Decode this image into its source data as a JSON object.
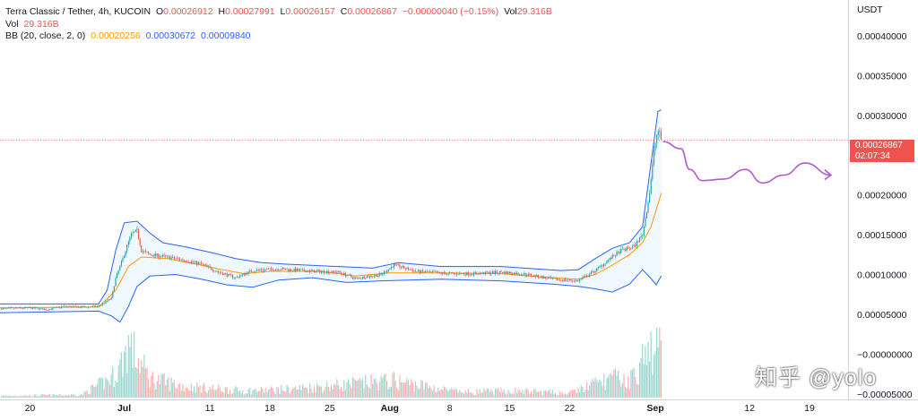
{
  "legend": {
    "symbol": "Terra Classic / Tether, 4h, KUCOIN",
    "o_label": "O",
    "o_value": "0.00026912",
    "h_label": "H",
    "h_value": "0.00027991",
    "l_label": "L",
    "l_value": "0.00026157",
    "c_label": "C",
    "c_value": "0.00026867",
    "change": "−0.00000040 (−0.15%)",
    "vol_inline": "29.316B",
    "vol_label": "Vol",
    "vol_value": "29.316B",
    "bb_label": "BB (20, close, 2, 0)",
    "bb_basis": "0.00020256",
    "bb_upper": "0.00030672",
    "bb_lower": "0.00009840"
  },
  "price_tag": {
    "price": "0.00026867",
    "countdown": "02:07:34"
  },
  "watermark": "知乎 @yolo",
  "colors": {
    "up": "#26a69a",
    "down": "#ef5350",
    "basis": "#ff9800",
    "bands": "#2962ff",
    "projection": "#b05ad0"
  },
  "chart_data": {
    "type": "candlestick",
    "title": "Terra Classic / Tether, 4h, KUCOIN",
    "y_axis_unit": "USDT",
    "y_ticks": [
      "0.00040000",
      "0.00035000",
      "0.00030000",
      "0.00025000",
      "0.00020000",
      "0.00015000",
      "0.00010000",
      "0.00005000",
      "−0.00000000",
      "−0.00005000"
    ],
    "y_tick_values": [
      0.0004,
      0.00035,
      0.0003,
      0.00025,
      0.0002,
      0.00015,
      0.0001,
      5e-05,
      0,
      -5e-05
    ],
    "y_axis_label": "USDT",
    "ylim": [
      -5.7e-05,
      0.000445
    ],
    "x_ticks": [
      "20",
      "Jul",
      "11",
      "18",
      "25",
      "Aug",
      "8",
      "15",
      "22",
      "Sep",
      "12",
      "19"
    ],
    "x_tick_days": [
      0,
      11,
      21,
      28,
      35,
      42,
      49,
      56,
      63,
      73,
      84,
      91
    ],
    "x_range_days": [
      -3.5,
      95.5
    ],
    "last_price": 0.00026867,
    "price_series": [
      {
        "day": -3.5,
        "close": 5.7e-05
      },
      {
        "day": 0,
        "close": 5.8e-05
      },
      {
        "day": 2,
        "close": 5.6e-05
      },
      {
        "day": 4,
        "close": 6e-05
      },
      {
        "day": 6,
        "close": 5.9e-05
      },
      {
        "day": 8,
        "close": 6e-05
      },
      {
        "day": 9.5,
        "close": 7e-05
      },
      {
        "day": 10,
        "close": 9.5e-05
      },
      {
        "day": 11,
        "close": 0.000125
      },
      {
        "day": 11.8,
        "close": 0.00015
      },
      {
        "day": 12.5,
        "close": 0.000155
      },
      {
        "day": 13,
        "close": 0.00013
      },
      {
        "day": 14,
        "close": 0.000125
      },
      {
        "day": 16,
        "close": 0.000122
      },
      {
        "day": 18,
        "close": 0.000118
      },
      {
        "day": 20,
        "close": 0.000113
      },
      {
        "day": 22,
        "close": 0.000103
      },
      {
        "day": 24,
        "close": 9.6e-05
      },
      {
        "day": 26,
        "close": 0.000105
      },
      {
        "day": 29,
        "close": 0.000107
      },
      {
        "day": 33,
        "close": 0.000104
      },
      {
        "day": 36,
        "close": 0.000103
      },
      {
        "day": 38,
        "close": 9.5e-05
      },
      {
        "day": 41,
        "close": 0.0001
      },
      {
        "day": 42.5,
        "close": 0.000112
      },
      {
        "day": 45,
        "close": 0.000104
      },
      {
        "day": 49,
        "close": 0.000101
      },
      {
        "day": 52,
        "close": 0.000101
      },
      {
        "day": 55,
        "close": 0.000103
      },
      {
        "day": 58,
        "close": 0.0001
      },
      {
        "day": 61,
        "close": 9.4e-05
      },
      {
        "day": 64,
        "close": 9.2e-05
      },
      {
        "day": 66,
        "close": 0.000105
      },
      {
        "day": 67.5,
        "close": 0.000118
      },
      {
        "day": 69,
        "close": 0.00013
      },
      {
        "day": 70.5,
        "close": 0.000135
      },
      {
        "day": 71.5,
        "close": 0.00015
      },
      {
        "day": 72.3,
        "close": 0.0002
      },
      {
        "day": 72.9,
        "close": 0.00026
      },
      {
        "day": 73.3,
        "close": 0.000282
      },
      {
        "day": 73.7,
        "close": 0.000269
      }
    ],
    "bb_upper_series": [
      {
        "day": -3.5,
        "v": 6.3e-05
      },
      {
        "day": 8,
        "v": 6.3e-05
      },
      {
        "day": 9,
        "v": 8e-05
      },
      {
        "day": 10,
        "v": 0.00013
      },
      {
        "day": 11,
        "v": 0.000165
      },
      {
        "day": 12.5,
        "v": 0.000167
      },
      {
        "day": 14,
        "v": 0.000152
      },
      {
        "day": 15.5,
        "v": 0.00014
      },
      {
        "day": 18,
        "v": 0.000135
      },
      {
        "day": 21,
        "v": 0.000128
      },
      {
        "day": 24,
        "v": 0.00012
      },
      {
        "day": 27,
        "v": 0.000115
      },
      {
        "day": 30,
        "v": 0.000113
      },
      {
        "day": 34,
        "v": 0.000111
      },
      {
        "day": 40,
        "v": 0.000108
      },
      {
        "day": 43,
        "v": 0.000115
      },
      {
        "day": 48,
        "v": 0.00011
      },
      {
        "day": 55,
        "v": 0.00011
      },
      {
        "day": 62,
        "v": 0.000105
      },
      {
        "day": 64,
        "v": 0.000106
      },
      {
        "day": 66,
        "v": 0.00012
      },
      {
        "day": 68,
        "v": 0.000133
      },
      {
        "day": 70,
        "v": 0.00014
      },
      {
        "day": 71.5,
        "v": 0.00016
      },
      {
        "day": 72.5,
        "v": 0.00024
      },
      {
        "day": 73.3,
        "v": 0.000305
      },
      {
        "day": 73.7,
        "v": 0.000307
      }
    ],
    "bb_basis_series": [
      {
        "day": -3.5,
        "v": 5.8e-05
      },
      {
        "day": 8,
        "v": 5.9e-05
      },
      {
        "day": 10,
        "v": 8e-05
      },
      {
        "day": 11.5,
        "v": 0.00011
      },
      {
        "day": 13,
        "v": 0.000122
      },
      {
        "day": 16,
        "v": 0.00012
      },
      {
        "day": 19,
        "v": 0.000114
      },
      {
        "day": 22,
        "v": 0.000107
      },
      {
        "day": 25,
        "v": 0.000101
      },
      {
        "day": 28,
        "v": 0.000104
      },
      {
        "day": 34,
        "v": 0.000104
      },
      {
        "day": 38,
        "v": 9.8e-05
      },
      {
        "day": 42,
        "v": 0.000102
      },
      {
        "day": 48,
        "v": 0.000102
      },
      {
        "day": 55,
        "v": 0.000101
      },
      {
        "day": 61,
        "v": 9.6e-05
      },
      {
        "day": 64,
        "v": 9.4e-05
      },
      {
        "day": 66,
        "v": 0.0001
      },
      {
        "day": 68,
        "v": 0.000112
      },
      {
        "day": 70,
        "v": 0.000125
      },
      {
        "day": 71.5,
        "v": 0.00014
      },
      {
        "day": 72.5,
        "v": 0.00016
      },
      {
        "day": 73.7,
        "v": 0.00020256
      }
    ],
    "bb_lower_series": [
      {
        "day": -3.5,
        "v": 5.2e-05
      },
      {
        "day": 8,
        "v": 5.4e-05
      },
      {
        "day": 9.5,
        "v": 4.8e-05
      },
      {
        "day": 10.5,
        "v": 4e-05
      },
      {
        "day": 11.5,
        "v": 6e-05
      },
      {
        "day": 12.5,
        "v": 8.5e-05
      },
      {
        "day": 14,
        "v": 9.8e-05
      },
      {
        "day": 17,
        "v": 0.0001
      },
      {
        "day": 20,
        "v": 9.4e-05
      },
      {
        "day": 23,
        "v": 8.7e-05
      },
      {
        "day": 26,
        "v": 8.4e-05
      },
      {
        "day": 29,
        "v": 9.3e-05
      },
      {
        "day": 33,
        "v": 9.6e-05
      },
      {
        "day": 37,
        "v": 9e-05
      },
      {
        "day": 41,
        "v": 9.2e-05
      },
      {
        "day": 48,
        "v": 9.4e-05
      },
      {
        "day": 55,
        "v": 9.2e-05
      },
      {
        "day": 61,
        "v": 8.8e-05
      },
      {
        "day": 64,
        "v": 8.5e-05
      },
      {
        "day": 66,
        "v": 8.2e-05
      },
      {
        "day": 68,
        "v": 7.8e-05
      },
      {
        "day": 70,
        "v": 8.8e-05
      },
      {
        "day": 71.5,
        "v": 0.000106
      },
      {
        "day": 72.5,
        "v": 9.5e-05
      },
      {
        "day": 73.1,
        "v": 8.7e-05
      },
      {
        "day": 73.7,
        "v": 9.84e-05
      }
    ],
    "volume_profile": [
      {
        "day": -3.5,
        "rel": 0.03
      },
      {
        "day": 6,
        "rel": 0.05
      },
      {
        "day": 9.5,
        "rel": 0.35
      },
      {
        "day": 10.5,
        "rel": 0.55
      },
      {
        "day": 11.5,
        "rel": 0.95
      },
      {
        "day": 12.5,
        "rel": 0.7
      },
      {
        "day": 14,
        "rel": 0.35
      },
      {
        "day": 18,
        "rel": 0.2
      },
      {
        "day": 25,
        "rel": 0.12
      },
      {
        "day": 30,
        "rel": 0.15
      },
      {
        "day": 42.5,
        "rel": 0.3
      },
      {
        "day": 50,
        "rel": 0.1
      },
      {
        "day": 57,
        "rel": 0.12
      },
      {
        "day": 63,
        "rel": 0.08
      },
      {
        "day": 66,
        "rel": 0.25
      },
      {
        "day": 68,
        "rel": 0.35
      },
      {
        "day": 70,
        "rel": 0.3
      },
      {
        "day": 72.5,
        "rel": 0.85
      },
      {
        "day": 73.7,
        "rel": 0.9
      }
    ],
    "projection_path": [
      {
        "day": 73.9,
        "v": 0.000267
      },
      {
        "day": 76,
        "v": 0.000258
      },
      {
        "day": 77,
        "v": 0.000232
      },
      {
        "day": 78.5,
        "v": 0.000218
      },
      {
        "day": 81,
        "v": 0.00022
      },
      {
        "day": 83.5,
        "v": 0.000232
      },
      {
        "day": 85.5,
        "v": 0.000215
      },
      {
        "day": 88,
        "v": 0.000225
      },
      {
        "day": 90.5,
        "v": 0.00024
      },
      {
        "day": 93.5,
        "v": 0.000225
      }
    ]
  }
}
